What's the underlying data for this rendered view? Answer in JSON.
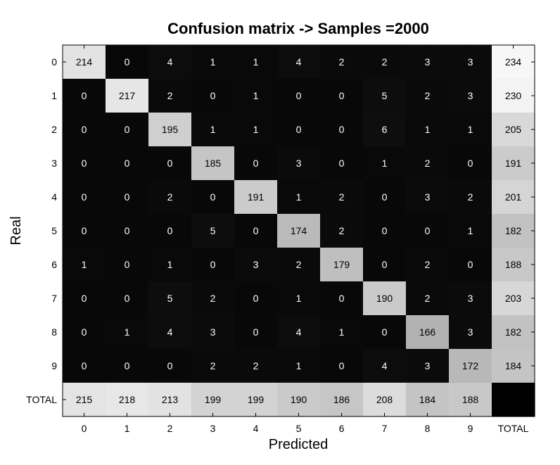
{
  "chart_data": {
    "type": "heatmap",
    "title": "Confusion matrix -> Samples =2000",
    "xlabel": "Predicted",
    "ylabel": "Real",
    "x_tick_labels": [
      "0",
      "1",
      "2",
      "3",
      "4",
      "5",
      "6",
      "7",
      "8",
      "9",
      "TOTAL"
    ],
    "y_tick_labels": [
      "0",
      "1",
      "2",
      "3",
      "4",
      "5",
      "6",
      "7",
      "8",
      "9",
      "TOTAL"
    ],
    "colormap": "grayscale (black = low, white = high)",
    "grid": false,
    "matrix": [
      [
        214,
        0,
        4,
        1,
        1,
        4,
        2,
        2,
        3,
        3,
        234
      ],
      [
        0,
        217,
        2,
        0,
        1,
        0,
        0,
        5,
        2,
        3,
        230
      ],
      [
        0,
        0,
        195,
        1,
        1,
        0,
        0,
        6,
        1,
        1,
        205
      ],
      [
        0,
        0,
        0,
        185,
        0,
        3,
        0,
        1,
        2,
        0,
        191
      ],
      [
        0,
        0,
        2,
        0,
        191,
        1,
        2,
        0,
        3,
        2,
        201
      ],
      [
        0,
        0,
        0,
        5,
        0,
        174,
        2,
        0,
        0,
        1,
        182
      ],
      [
        1,
        0,
        1,
        0,
        3,
        2,
        179,
        0,
        2,
        0,
        188
      ],
      [
        0,
        0,
        5,
        2,
        0,
        1,
        0,
        190,
        2,
        3,
        203
      ],
      [
        0,
        1,
        4,
        3,
        0,
        4,
        1,
        0,
        166,
        3,
        182
      ],
      [
        0,
        0,
        0,
        2,
        2,
        1,
        0,
        4,
        3,
        172,
        184
      ],
      [
        215,
        218,
        213,
        199,
        199,
        190,
        186,
        208,
        184,
        188,
        null
      ]
    ]
  }
}
